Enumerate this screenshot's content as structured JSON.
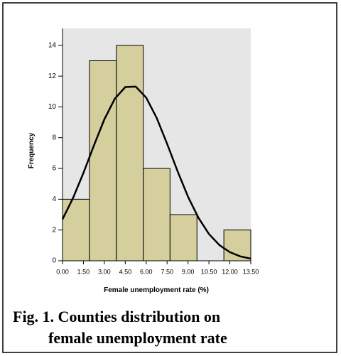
{
  "chart_data": {
    "type": "histogram",
    "xlabel": "Female unemployment  rate (%)",
    "ylabel": "Frequency",
    "caption": [
      "Fig. 1. Counties distribution on",
      "female unemployment rate"
    ],
    "bins": [
      0,
      1.93,
      3.86,
      5.79,
      7.71,
      9.64,
      11.57,
      13.5
    ],
    "counts": [
      4,
      13,
      14,
      6,
      3,
      0,
      2
    ],
    "color": "#d4cf9c",
    "curve": {
      "color": "#000000",
      "x": [
        0,
        0.75,
        1.5,
        2.25,
        3,
        3.75,
        4.5,
        5.25,
        6,
        6.75,
        7.5,
        8.25,
        9,
        9.75,
        10.5,
        11.25,
        12,
        12.75,
        13.5
      ],
      "y": [
        2.7,
        4.07,
        5.71,
        7.49,
        9.19,
        10.53,
        11.29,
        11.32,
        10.6,
        9.29,
        7.6,
        5.82,
        4.16,
        2.79,
        1.74,
        1.02,
        0.56,
        0.285,
        0.14
      ]
    },
    "xlim": [
      0,
      13.5
    ],
    "ylim": [
      0,
      15.1
    ],
    "xticks": [
      {
        "value": 0,
        "label": "0.00"
      },
      {
        "value": 1.5,
        "label": "1.50"
      },
      {
        "value": 3,
        "label": "3.00"
      },
      {
        "value": 4.5,
        "label": "4.50"
      },
      {
        "value": 6,
        "label": "6.00"
      },
      {
        "value": 7.5,
        "label": "7.50"
      },
      {
        "value": 9,
        "label": "9.00"
      },
      {
        "value": 10.5,
        "label": "10.50"
      },
      {
        "value": 12,
        "label": "12.00"
      },
      {
        "value": 13.5,
        "label": "13.50"
      }
    ],
    "yticks": [
      0,
      2,
      4,
      6,
      8,
      10,
      12,
      14
    ],
    "background": "#e6e6e6"
  }
}
